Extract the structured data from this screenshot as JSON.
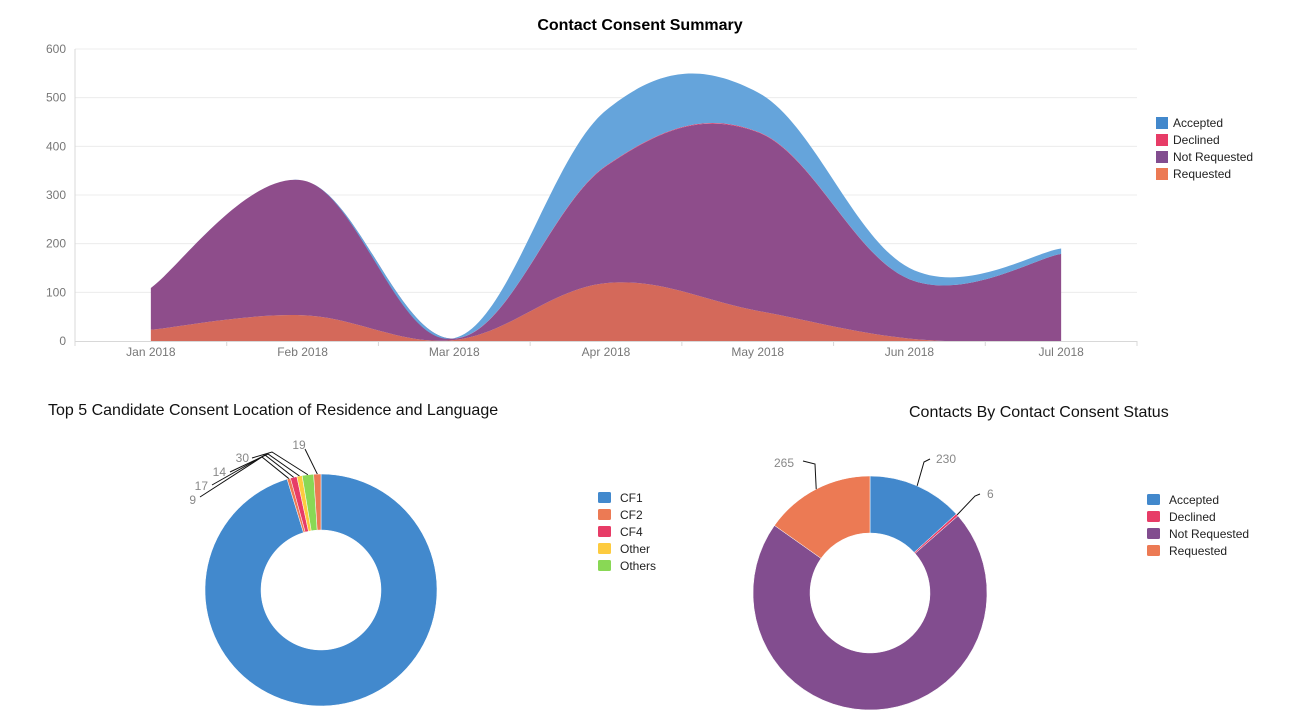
{
  "colors": {
    "Accepted": "#4288cc",
    "Declined": "#e73c67",
    "Not Requested": "#824d8f",
    "Requested": "#ec7a54",
    "CF1": "#4289cd",
    "CF2": "#ec7a54",
    "CF4": "#e73c67",
    "Other": "#fdcb3f",
    "Others": "#89d855"
  },
  "chart_data": [
    {
      "type": "area",
      "stacked": true,
      "title": "Contact Consent Summary",
      "xlabel": "",
      "ylabel": "",
      "categories": [
        "Jan 2018",
        "Feb 2018",
        "Mar 2018",
        "Apr 2018",
        "May 2018",
        "Jun 2018",
        "Jul 2018"
      ],
      "ylim": [
        0,
        600
      ],
      "yticks": [
        0,
        100,
        200,
        300,
        400,
        500,
        600
      ],
      "grid": true,
      "legend_position": "right",
      "series": [
        {
          "name": "Requested",
          "values": [
            23,
            53,
            2,
            119,
            62,
            5,
            0
          ]
        },
        {
          "name": "Not Requested",
          "values": [
            86,
            277,
            3,
            240,
            367,
            122,
            179
          ]
        },
        {
          "name": "Declined",
          "values": [
            0,
            0,
            0,
            1,
            1,
            0,
            0
          ]
        },
        {
          "name": "Accepted",
          "values": [
            0,
            0,
            1,
            114,
            81,
            23,
            11
          ]
        }
      ],
      "legend": [
        "Accepted",
        "Declined",
        "Not Requested",
        "Requested"
      ]
    },
    {
      "type": "pie",
      "donut": true,
      "title": "Top 5 Candidate Consent Location of Residence and Language",
      "legend": [
        "CF1",
        "CF2",
        "CF4",
        "Other",
        "Others"
      ],
      "legend_position": "right",
      "slices": [
        {
          "name": "CF1",
          "value": 1796,
          "label": ""
        },
        {
          "name": "CF2",
          "value": 9,
          "label": "9"
        },
        {
          "name": "CF4",
          "value": 17,
          "label": "17"
        },
        {
          "name": "Other",
          "value": 14,
          "label": "14"
        },
        {
          "name": "Others",
          "value": 30,
          "label": "30"
        },
        {
          "name": "CF2",
          "value": 19,
          "label": "19"
        }
      ]
    },
    {
      "type": "pie",
      "donut": true,
      "title": "Contacts By Contact Consent Status",
      "legend": [
        "Accepted",
        "Declined",
        "Not Requested",
        "Requested"
      ],
      "legend_position": "right",
      "slices": [
        {
          "name": "Accepted",
          "value": 230,
          "label": "230"
        },
        {
          "name": "Declined",
          "value": 6,
          "label": "6"
        },
        {
          "name": "Not Requested",
          "value": 1242,
          "label": ""
        },
        {
          "name": "Requested",
          "value": 265,
          "label": "265"
        }
      ]
    }
  ]
}
